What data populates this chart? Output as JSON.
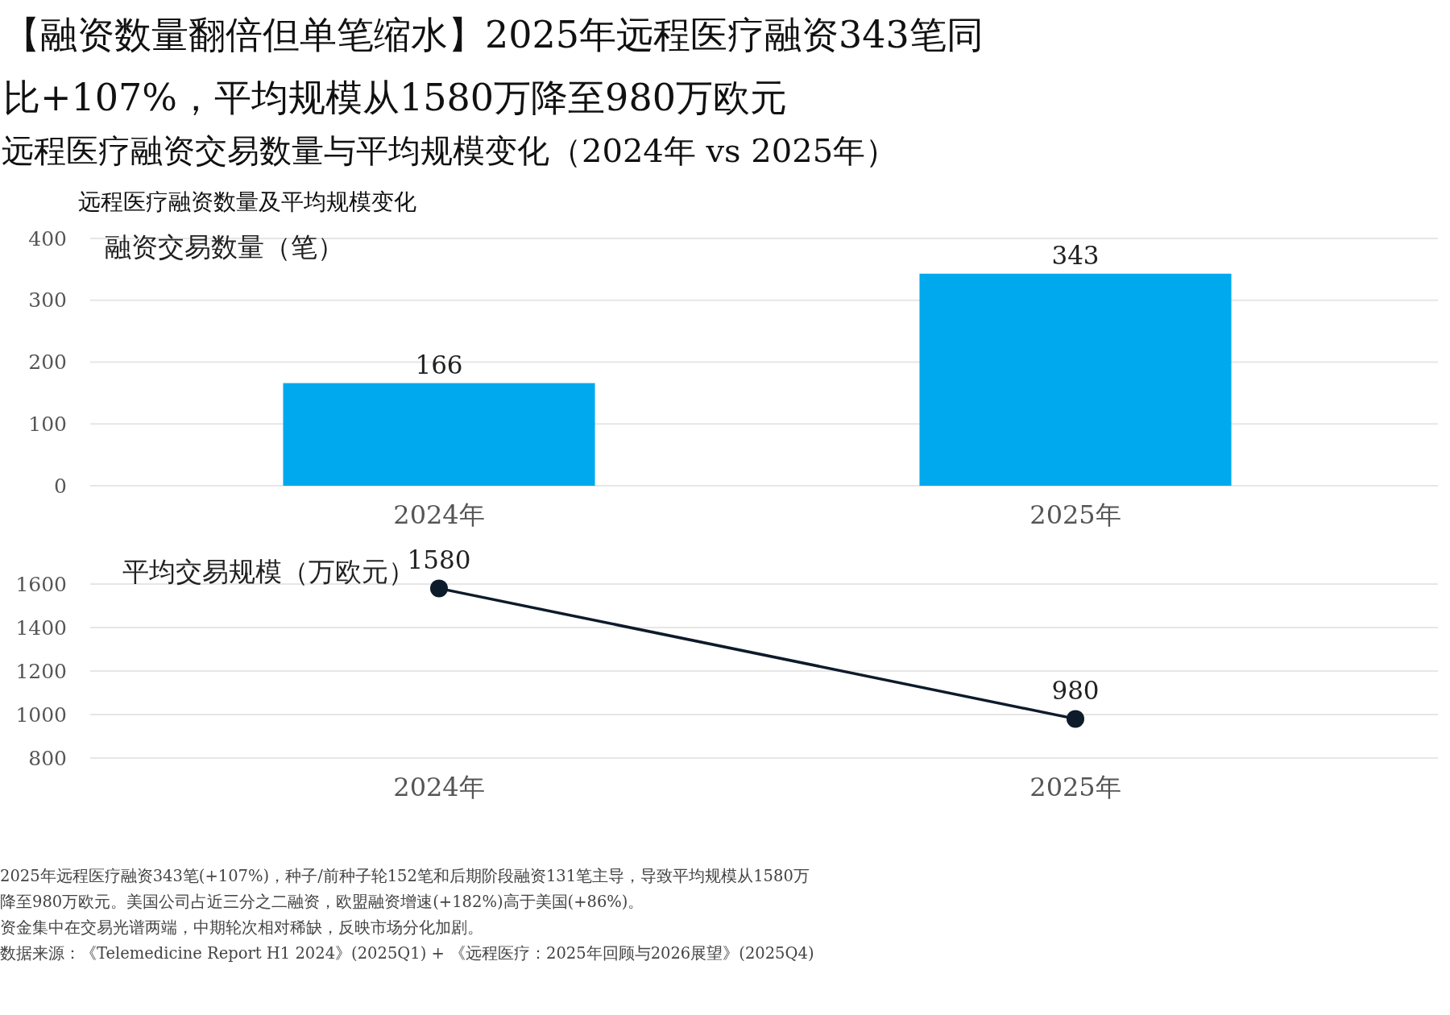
{
  "chart_data": [
    {
      "type": "bar",
      "title": "【融资数量翻倍但单笔缩水】2025年远程医疗融资343笔同比+107%，平均规模从1580万降至980万欧元",
      "subtitle": "远程医疗融资交易数量与平均规模变化（2024年 vs 2025年）",
      "annotations": [
        "远程医疗融资数量及平均规模变化"
      ],
      "ylabel": "融资交易数量（笔）",
      "categories": [
        "2024年",
        "2025年"
      ],
      "values": [
        166,
        343
      ],
      "color": "#00a9ee",
      "ylim": [
        0,
        400
      ],
      "yticks": [
        0,
        100,
        200,
        300,
        400
      ],
      "grid": "y",
      "data_labels": true
    },
    {
      "type": "line",
      "ylabel": "平均交易规模（万欧元）",
      "categories": [
        "2024年",
        "2025年"
      ],
      "values": [
        1580,
        980
      ],
      "color": "#0d1b2a",
      "marker": "circle",
      "line_style": "solid",
      "ylim": [
        800,
        1600
      ],
      "yticks": [
        800,
        1000,
        1200,
        1400,
        1600
      ],
      "grid": "y",
      "data_labels": true,
      "annotations": [
        "2025年远程医疗融资343笔(+107%)，种子/前种子轮152笔和后期阶段融资131笔主导，导致平均规模从1580万降至980万欧元。美国公司占近三分之二融资，欧盟融资增速(+182%)高于美国(+86%)。",
        "资金集中在交易光谱两端，中期轮次相对稀缺，反映市场分化加剧。",
        "数据来源：《Telemedicine Report H1 2024》(2025Q1) + 《远程医疗：2025年回顾与2026展望》(2025Q4)"
      ]
    }
  ]
}
